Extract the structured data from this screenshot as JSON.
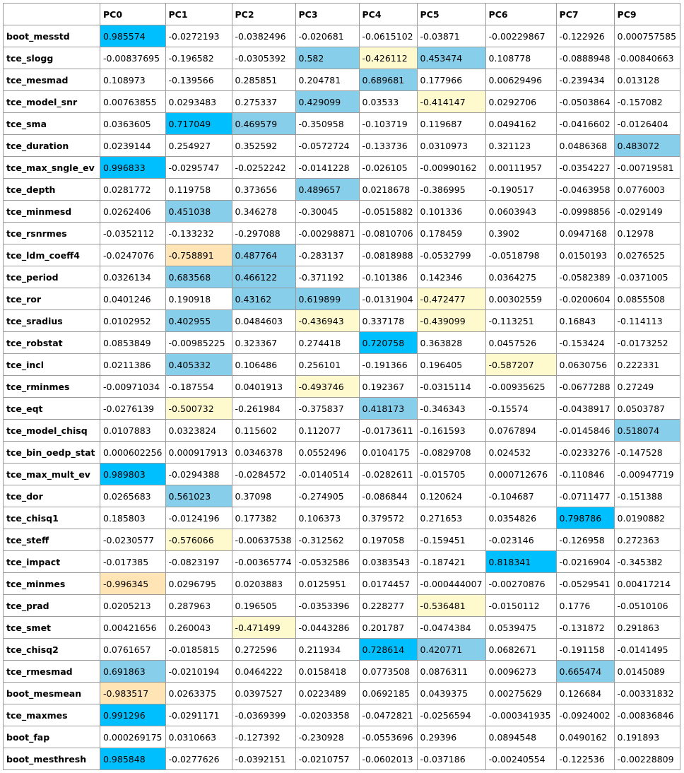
{
  "colors": {
    "strong_positive": "#00bfff",
    "positive": "#87ceeb",
    "strong_negative": "#ffe4b5",
    "negative": "#fffacd"
  },
  "columns": [
    "PC0",
    "PC1",
    "PC2",
    "PC3",
    "PC4",
    "PC5",
    "PC6",
    "PC7",
    "PC9"
  ],
  "rows": [
    {
      "name": "boot_messtd",
      "values": [
        "0.985574",
        "-0.0272193",
        "-0.0382496",
        "-0.020681",
        "-0.0615102",
        "-0.03871",
        "-0.00229867",
        "-0.122926",
        "0.000757585"
      ],
      "hl": [
        "s",
        "",
        "",
        "",
        "",
        "",
        "",
        "",
        ""
      ]
    },
    {
      "name": "tce_slogg",
      "values": [
        "-0.00837695",
        "-0.196582",
        "-0.0305392",
        "0.582",
        "-0.426112",
        "0.453474",
        "0.108778",
        "-0.0888948",
        "-0.00840663"
      ],
      "hl": [
        "",
        "",
        "",
        "m",
        "y",
        "m",
        "",
        "",
        ""
      ]
    },
    {
      "name": "tce_mesmad",
      "values": [
        "0.108973",
        "-0.139566",
        "0.285851",
        "0.204781",
        "0.689681",
        "0.177966",
        "0.00629496",
        "-0.239434",
        "0.013128"
      ],
      "hl": [
        "",
        "",
        "",
        "",
        "m",
        "",
        "",
        "",
        ""
      ]
    },
    {
      "name": "tce_model_snr",
      "values": [
        "0.00763855",
        "0.0293483",
        "0.275337",
        "0.429099",
        "0.03533",
        "-0.414147",
        "0.0292706",
        "-0.0503864",
        "-0.157082"
      ],
      "hl": [
        "",
        "",
        "",
        "m",
        "",
        "y",
        "",
        "",
        ""
      ]
    },
    {
      "name": "tce_sma",
      "values": [
        "0.0363605",
        "0.717049",
        "0.469579",
        "-0.350958",
        "-0.103719",
        "0.119687",
        "0.0494162",
        "-0.0416602",
        "-0.0126404"
      ],
      "hl": [
        "",
        "s",
        "m",
        "",
        "",
        "",
        "",
        "",
        ""
      ]
    },
    {
      "name": "tce_duration",
      "values": [
        "0.0239144",
        "0.254927",
        "0.352592",
        "-0.0572724",
        "-0.133736",
        "0.0310973",
        "0.321123",
        "0.0486368",
        "0.483072"
      ],
      "hl": [
        "",
        "",
        "",
        "",
        "",
        "",
        "",
        "",
        "m"
      ]
    },
    {
      "name": "tce_max_sngle_ev",
      "values": [
        "0.996833",
        "-0.0295747",
        "-0.0252242",
        "-0.0141228",
        "-0.026105",
        "-0.00990162",
        "0.00111957",
        "-0.0354227",
        "-0.00719581"
      ],
      "hl": [
        "s",
        "",
        "",
        "",
        "",
        "",
        "",
        "",
        ""
      ]
    },
    {
      "name": "tce_depth",
      "values": [
        "0.0281772",
        "0.119758",
        "0.373656",
        "0.489657",
        "0.0218678",
        "-0.386995",
        "-0.190517",
        "-0.0463958",
        "0.0776003"
      ],
      "hl": [
        "",
        "",
        "",
        "m",
        "",
        "",
        "",
        "",
        ""
      ]
    },
    {
      "name": "tce_minmesd",
      "values": [
        "0.0262406",
        "0.451038",
        "0.346278",
        "-0.30045",
        "-0.0515882",
        "0.101336",
        "0.0603943",
        "-0.0998856",
        "-0.029149"
      ],
      "hl": [
        "",
        "m",
        "",
        "",
        "",
        "",
        "",
        "",
        ""
      ]
    },
    {
      "name": "tce_rsnrmes",
      "values": [
        "-0.0352112",
        "-0.133232",
        "-0.297088",
        "-0.00298871",
        "-0.0810706",
        "0.178459",
        "0.3902",
        "0.0947168",
        "0.12978"
      ],
      "hl": [
        "",
        "",
        "",
        "",
        "",
        "",
        "",
        "",
        ""
      ]
    },
    {
      "name": "tce_ldm_coeff4",
      "values": [
        "-0.0247076",
        "-0.758891",
        "0.487764",
        "-0.283137",
        "-0.0818988",
        "-0.0532799",
        "-0.0518798",
        "0.0150193",
        "0.0276525"
      ],
      "hl": [
        "",
        "o",
        "m",
        "",
        "",
        "",
        "",
        "",
        ""
      ]
    },
    {
      "name": "tce_period",
      "values": [
        "0.0326134",
        "0.683568",
        "0.466122",
        "-0.371192",
        "-0.101386",
        "0.142346",
        "0.0364275",
        "-0.0582389",
        "-0.0371005"
      ],
      "hl": [
        "",
        "m",
        "m",
        "",
        "",
        "",
        "",
        "",
        ""
      ]
    },
    {
      "name": "tce_ror",
      "values": [
        "0.0401246",
        "0.190918",
        "0.43162",
        "0.619899",
        "-0.0131904",
        "-0.472477",
        "0.00302559",
        "-0.0200604",
        "0.0855508"
      ],
      "hl": [
        "",
        "",
        "m",
        "m",
        "",
        "y",
        "",
        "",
        ""
      ]
    },
    {
      "name": "tce_sradius",
      "values": [
        "0.0102952",
        "0.402955",
        "0.0484603",
        "-0.436943",
        "0.337178",
        "-0.439099",
        "-0.113251",
        "0.16843",
        "-0.114113"
      ],
      "hl": [
        "",
        "m",
        "",
        "y",
        "",
        "y",
        "",
        "",
        ""
      ]
    },
    {
      "name": "tce_robstat",
      "values": [
        "0.0853849",
        "-0.00985225",
        "0.323367",
        "0.274418",
        "0.720758",
        "0.363828",
        "0.0457526",
        "-0.153424",
        "-0.0173252"
      ],
      "hl": [
        "",
        "",
        "",
        "",
        "s",
        "",
        "",
        "",
        ""
      ]
    },
    {
      "name": "tce_incl",
      "values": [
        "0.0211386",
        "0.405332",
        "0.106486",
        "0.256101",
        "-0.191366",
        "0.196405",
        "-0.587207",
        "0.0630756",
        "0.222331"
      ],
      "hl": [
        "",
        "m",
        "",
        "",
        "",
        "",
        "y",
        "",
        ""
      ]
    },
    {
      "name": "tce_rminmes",
      "values": [
        "-0.00971034",
        "-0.187554",
        "0.0401913",
        "-0.493746",
        "0.192367",
        "-0.0315114",
        "-0.00935625",
        "-0.0677288",
        "0.27249"
      ],
      "hl": [
        "",
        "",
        "",
        "y",
        "",
        "",
        "",
        "",
        ""
      ]
    },
    {
      "name": "tce_eqt",
      "values": [
        "-0.0276139",
        "-0.500732",
        "-0.261984",
        "-0.375837",
        "0.418173",
        "-0.346343",
        "-0.15574",
        "-0.0438917",
        "0.0503787"
      ],
      "hl": [
        "",
        "y",
        "",
        "",
        "m",
        "",
        "",
        "",
        ""
      ]
    },
    {
      "name": "tce_model_chisq",
      "values": [
        "0.0107883",
        "0.0323824",
        "0.115602",
        "0.112077",
        "-0.0173611",
        "-0.161593",
        "0.0767894",
        "-0.0145846",
        "0.518074"
      ],
      "hl": [
        "",
        "",
        "",
        "",
        "",
        "",
        "",
        "",
        "m"
      ]
    },
    {
      "name": "tce_bin_oedp_stat",
      "values": [
        "0.000602256",
        "0.000917913",
        "0.0346378",
        "0.0552496",
        "0.0104175",
        "-0.0829708",
        "0.024532",
        "-0.0233276",
        "-0.147528"
      ],
      "hl": [
        "",
        "",
        "",
        "",
        "",
        "",
        "",
        "",
        ""
      ]
    },
    {
      "name": "tce_max_mult_ev",
      "values": [
        "0.989803",
        "-0.0294388",
        "-0.0284572",
        "-0.0140514",
        "-0.0282611",
        "-0.015705",
        "0.000712676",
        "-0.110846",
        "-0.00947719"
      ],
      "hl": [
        "s",
        "",
        "",
        "",
        "",
        "",
        "",
        "",
        ""
      ]
    },
    {
      "name": "tce_dor",
      "values": [
        "0.0265683",
        "0.561023",
        "0.37098",
        "-0.274905",
        "-0.086844",
        "0.120624",
        "-0.104687",
        "-0.0711477",
        "-0.151388"
      ],
      "hl": [
        "",
        "m",
        "",
        "",
        "",
        "",
        "",
        "",
        ""
      ]
    },
    {
      "name": "tce_chisq1",
      "values": [
        "0.185803",
        "-0.0124196",
        "0.177382",
        "0.106373",
        "0.379572",
        "0.271653",
        "0.0354826",
        "0.798786",
        "0.0190882"
      ],
      "hl": [
        "",
        "",
        "",
        "",
        "",
        "",
        "",
        "s",
        ""
      ]
    },
    {
      "name": "tce_steff",
      "values": [
        "-0.0230577",
        "-0.576066",
        "-0.00637538",
        "-0.312562",
        "0.197058",
        "-0.159451",
        "-0.023146",
        "-0.126958",
        "0.272363"
      ],
      "hl": [
        "",
        "y",
        "",
        "",
        "",
        "",
        "",
        "",
        ""
      ]
    },
    {
      "name": "tce_impact",
      "values": [
        "-0.017385",
        "-0.0823197",
        "-0.00365774",
        "-0.0532586",
        "0.0383543",
        "-0.187421",
        "0.818341",
        "-0.0216904",
        "-0.345382"
      ],
      "hl": [
        "",
        "",
        "",
        "",
        "",
        "",
        "s",
        "",
        ""
      ]
    },
    {
      "name": "tce_minmes",
      "values": [
        "-0.996345",
        "0.0296795",
        "0.0203883",
        "0.0125951",
        "0.0174457",
        "-0.000444007",
        "-0.00270876",
        "-0.0529541",
        "0.00417214"
      ],
      "hl": [
        "o",
        "",
        "",
        "",
        "",
        "",
        "",
        "",
        ""
      ]
    },
    {
      "name": "tce_prad",
      "values": [
        "0.0205213",
        "0.287963",
        "0.196505",
        "-0.0353396",
        "0.228277",
        "-0.536481",
        "-0.0150112",
        "0.1776",
        "-0.0510106"
      ],
      "hl": [
        "",
        "",
        "",
        "",
        "",
        "y",
        "",
        "",
        ""
      ]
    },
    {
      "name": "tce_smet",
      "values": [
        "0.00421656",
        "0.260043",
        "-0.471499",
        "-0.0443286",
        "0.201787",
        "-0.0474384",
        "0.0539475",
        "-0.131872",
        "0.291863"
      ],
      "hl": [
        "",
        "",
        "y",
        "",
        "",
        "",
        "",
        "",
        ""
      ]
    },
    {
      "name": "tce_chisq2",
      "values": [
        "0.0761657",
        "-0.0185815",
        "0.272596",
        "0.211934",
        "0.728614",
        "0.420771",
        "0.0682671",
        "-0.191158",
        "-0.0141495"
      ],
      "hl": [
        "",
        "",
        "",
        "",
        "s",
        "m",
        "",
        "",
        ""
      ]
    },
    {
      "name": "tce_rmesmad",
      "values": [
        "0.691863",
        "-0.0210194",
        "0.0464222",
        "0.0158418",
        "0.0773508",
        "0.0876311",
        "0.0096273",
        "0.665474",
        "0.0145089"
      ],
      "hl": [
        "m",
        "",
        "",
        "",
        "",
        "",
        "",
        "m",
        ""
      ]
    },
    {
      "name": "boot_mesmean",
      "values": [
        "-0.983517",
        "0.0263375",
        "0.0397527",
        "0.0223489",
        "0.0692185",
        "0.0439375",
        "0.00275629",
        "0.126684",
        "-0.00331832"
      ],
      "hl": [
        "o",
        "",
        "",
        "",
        "",
        "",
        "",
        "",
        ""
      ]
    },
    {
      "name": "tce_maxmes",
      "values": [
        "0.991296",
        "-0.0291171",
        "-0.0369399",
        "-0.0203358",
        "-0.0472821",
        "-0.0256594",
        "-0.000341935",
        "-0.0924002",
        "-0.00836846"
      ],
      "hl": [
        "s",
        "",
        "",
        "",
        "",
        "",
        "",
        "",
        ""
      ]
    },
    {
      "name": "boot_fap",
      "values": [
        "0.000269175",
        "0.0310663",
        "-0.127392",
        "-0.230928",
        "-0.0553696",
        "0.29396",
        "0.0894548",
        "0.0490162",
        "0.191893"
      ],
      "hl": [
        "",
        "",
        "",
        "",
        "",
        "",
        "",
        "",
        ""
      ]
    },
    {
      "name": "boot_mesthresh",
      "values": [
        "0.985848",
        "-0.0277626",
        "-0.0392151",
        "-0.0210757",
        "-0.0602013",
        "-0.037186",
        "-0.00240554",
        "-0.122536",
        "-0.00228809"
      ],
      "hl": [
        "s",
        "",
        "",
        "",
        "",
        "",
        "",
        "",
        ""
      ]
    }
  ]
}
